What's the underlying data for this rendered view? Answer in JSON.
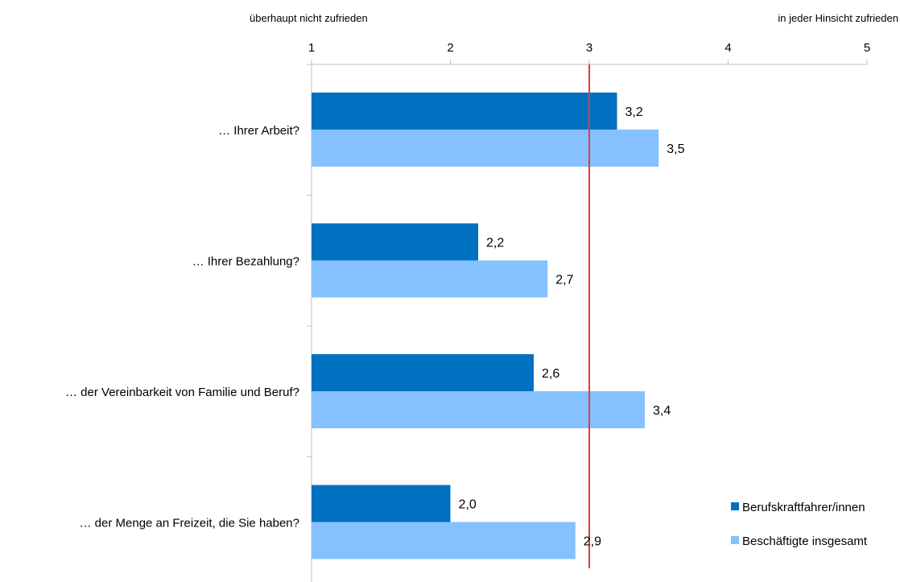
{
  "chart_data": {
    "type": "bar",
    "orientation": "horizontal",
    "title": "",
    "xlabel": "",
    "ylabel": "",
    "scale_left_label": "überhaupt nicht zufrieden",
    "scale_right_label": "in jeder Hinsicht zufrieden",
    "xlim": [
      1,
      5
    ],
    "x_ticks": [
      1,
      2,
      3,
      4,
      5
    ],
    "x_tick_labels": [
      "1",
      "2",
      "3",
      "4",
      "5"
    ],
    "reference_line": {
      "value": 3,
      "color": "#e8383d"
    },
    "categories": [
      "… Ihrer Arbeit?",
      "…  Ihrer Bezahlung?",
      "… der Vereinbarkeit von Familie und Beruf?",
      "… der Menge an Freizeit, die Sie haben?"
    ],
    "series": [
      {
        "name": "Berufskraftfahrer/innen",
        "color": "#0070c0",
        "values": [
          3.2,
          2.2,
          2.6,
          2.0
        ],
        "labels": [
          "3,2",
          "2,2",
          "2,6",
          "2,0"
        ]
      },
      {
        "name": "Beschäftigte insgesamt",
        "color": "#85c1ff",
        "values": [
          3.5,
          2.7,
          3.4,
          2.9
        ],
        "labels": [
          "3,5",
          "2,7",
          "3,4",
          "2,9"
        ]
      }
    ],
    "grid": false,
    "legend_position": "bottom-right",
    "colors": {
      "axis": "#bfbfbf",
      "text": "#000000"
    }
  }
}
